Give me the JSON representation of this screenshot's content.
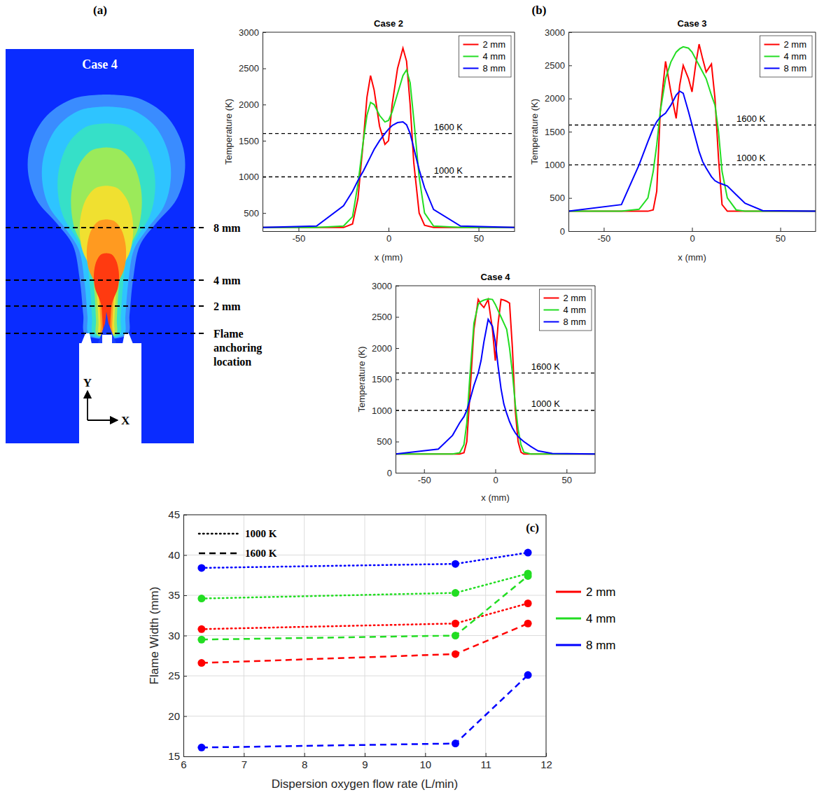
{
  "panel_a": {
    "letter": "(a)",
    "title": "Case 4",
    "cut_labels": [
      "8 mm",
      "4 mm",
      "2 mm"
    ],
    "anchor_label": "Flame anchoring location",
    "axis_labels": [
      "Y",
      "X"
    ]
  },
  "panel_b": {
    "letter": "(b)"
  },
  "chart_data": [
    {
      "type": "line",
      "title": "Case 2",
      "xlabel": "x (mm)",
      "ylabel": "Temperature (K)",
      "x": [
        -70,
        -40,
        -25,
        -20,
        -17,
        -14,
        -12,
        -10,
        -8,
        -5,
        -2,
        0,
        2,
        5,
        8,
        10,
        12,
        14,
        17,
        20,
        25,
        40,
        70
      ],
      "xlim": [
        -70,
        70
      ],
      "xticks": [
        -50,
        0,
        50
      ],
      "ylim": [
        250,
        3000
      ],
      "yticks": [
        500,
        1000,
        1500,
        2000,
        2500,
        3000
      ],
      "grid": false,
      "legend": "upper right",
      "reference_lines": [
        {
          "value": 1600,
          "label": "1600 K"
        },
        {
          "value": 1000,
          "label": "1000 K"
        }
      ],
      "series": [
        {
          "name": "2 mm",
          "color": "#ff0000",
          "values": [
            300,
            300,
            300,
            350,
            700,
            1500,
            2100,
            2400,
            2200,
            1700,
            1450,
            1500,
            2000,
            2500,
            2780,
            2600,
            2000,
            1200,
            500,
            330,
            300,
            300,
            300
          ]
        },
        {
          "name": "4 mm",
          "color": "#22dd22",
          "values": [
            300,
            300,
            320,
            450,
            900,
            1500,
            1850,
            2030,
            2000,
            1850,
            1760,
            1780,
            1900,
            2150,
            2400,
            2480,
            2300,
            1800,
            1000,
            500,
            320,
            300,
            300
          ]
        },
        {
          "name": "8 mm",
          "color": "#0000ff",
          "values": [
            300,
            320,
            600,
            800,
            950,
            1080,
            1180,
            1280,
            1380,
            1500,
            1600,
            1660,
            1710,
            1750,
            1760,
            1720,
            1600,
            1400,
            1100,
            850,
            550,
            320,
            300
          ]
        }
      ]
    },
    {
      "type": "line",
      "title": "Case 3",
      "xlabel": "x (mm)",
      "ylabel": "Temperature (K)",
      "x": [
        -70,
        -40,
        -30,
        -25,
        -22,
        -20,
        -18,
        -15,
        -12,
        -9,
        -7,
        -5,
        -2,
        0,
        2,
        4,
        6,
        8,
        11,
        13,
        15,
        17,
        20,
        25,
        30,
        40,
        70
      ],
      "xlim": [
        -70,
        70
      ],
      "xticks": [
        -50,
        0,
        50
      ],
      "ylim": [
        0,
        3000
      ],
      "yticks": [
        0,
        500,
        1000,
        1500,
        2000,
        2500,
        3000
      ],
      "grid": false,
      "legend": "upper right",
      "reference_lines": [
        {
          "value": 1600,
          "label": "1600 K"
        },
        {
          "value": 1000,
          "label": "1000 K"
        }
      ],
      "series": [
        {
          "name": "2 mm",
          "color": "#ff0000",
          "values": [
            300,
            300,
            300,
            300,
            320,
            600,
            1800,
            2560,
            2100,
            1700,
            2200,
            2500,
            2300,
            2100,
            2500,
            2820,
            2600,
            2400,
            2520,
            2000,
            1100,
            400,
            300,
            300,
            300,
            300,
            300
          ]
        },
        {
          "name": "4 mm",
          "color": "#22dd22",
          "values": [
            300,
            300,
            330,
            500,
            900,
            1300,
            1800,
            2300,
            2550,
            2700,
            2750,
            2780,
            2760,
            2700,
            2600,
            2500,
            2400,
            2300,
            2050,
            1900,
            1500,
            900,
            500,
            320,
            300,
            300,
            300
          ]
        },
        {
          "name": "8 mm",
          "color": "#0000ff",
          "values": [
            300,
            400,
            1000,
            1350,
            1550,
            1650,
            1720,
            1780,
            1900,
            2050,
            2110,
            2080,
            1800,
            1600,
            1400,
            1200,
            1050,
            950,
            820,
            760,
            730,
            710,
            680,
            550,
            420,
            310,
            300
          ]
        }
      ]
    },
    {
      "type": "line",
      "title": "Case 4",
      "xlabel": "x (mm)",
      "ylabel": "Temperature (K)",
      "x": [
        -70,
        -40,
        -30,
        -25,
        -22,
        -20,
        -18,
        -15,
        -12,
        -10,
        -8,
        -5,
        -2,
        0,
        2,
        4,
        6,
        8,
        10,
        12,
        14,
        16,
        18,
        20,
        25,
        30,
        40,
        70
      ],
      "xlim": [
        -70,
        70
      ],
      "xticks": [
        -50,
        0,
        50
      ],
      "ylim": [
        0,
        3000
      ],
      "yticks": [
        0,
        500,
        1000,
        1500,
        2000,
        2500,
        3000
      ],
      "grid": false,
      "legend": "upper right",
      "reference_lines": [
        {
          "value": 1600,
          "label": "1600 K"
        },
        {
          "value": 1000,
          "label": "1000 K"
        }
      ],
      "series": [
        {
          "name": "2 mm",
          "color": "#ff0000",
          "values": [
            300,
            300,
            300,
            300,
            320,
            500,
            1200,
            2300,
            2780,
            2700,
            2650,
            2780,
            2300,
            1800,
            2400,
            2780,
            2770,
            2750,
            2720,
            2000,
            1000,
            500,
            330,
            300,
            300,
            300,
            300,
            300
          ]
        },
        {
          "name": "4 mm",
          "color": "#22dd22",
          "values": [
            300,
            300,
            300,
            320,
            450,
            800,
            1500,
            2400,
            2700,
            2750,
            2770,
            2790,
            2780,
            2700,
            2600,
            2500,
            2400,
            2300,
            2000,
            1600,
            1100,
            700,
            450,
            330,
            300,
            300,
            300,
            300
          ]
        },
        {
          "name": "8 mm",
          "color": "#0000ff",
          "values": [
            300,
            380,
            600,
            800,
            900,
            1000,
            1150,
            1400,
            1600,
            1800,
            2100,
            2460,
            2350,
            2100,
            1700,
            1350,
            1100,
            950,
            820,
            720,
            640,
            580,
            540,
            500,
            420,
            350,
            310,
            300
          ]
        }
      ]
    },
    {
      "type": "line",
      "label": "(c)",
      "xlabel": "Dispersion oxygen flow rate (L/min)",
      "ylabel": "Flame Width (mm)",
      "x": [
        6.3,
        10.5,
        11.7
      ],
      "xlim": [
        6,
        12
      ],
      "xticks": [
        6,
        7,
        8,
        9,
        10,
        11,
        12
      ],
      "ylim": [
        15,
        45
      ],
      "yticks": [
        15,
        20,
        25,
        30,
        35,
        40,
        45
      ],
      "grid": true,
      "legend": "right",
      "marker": "circle",
      "line_style_legend": [
        {
          "label": "1000 K",
          "line_style": "dotted"
        },
        {
          "label": "1600 K",
          "line_style": "dashed"
        }
      ],
      "series": [
        {
          "name": "2 mm",
          "color": "#ff0000",
          "line_style": "dotted",
          "values": [
            30.8,
            31.5,
            34.0
          ]
        },
        {
          "name": "4 mm",
          "color": "#22dd22",
          "line_style": "dotted",
          "values": [
            34.6,
            35.3,
            37.7
          ]
        },
        {
          "name": "8 mm",
          "color": "#0000ff",
          "line_style": "dotted",
          "values": [
            38.4,
            38.9,
            40.3
          ]
        },
        {
          "name": "2 mm",
          "color": "#ff0000",
          "line_style": "dashed",
          "values": [
            26.6,
            27.7,
            31.5
          ]
        },
        {
          "name": "4 mm",
          "color": "#22dd22",
          "line_style": "dashed",
          "values": [
            29.5,
            30.0,
            37.4
          ]
        },
        {
          "name": "8 mm",
          "color": "#0000ff",
          "line_style": "dashed",
          "values": [
            16.1,
            16.6,
            25.1
          ]
        }
      ]
    }
  ]
}
